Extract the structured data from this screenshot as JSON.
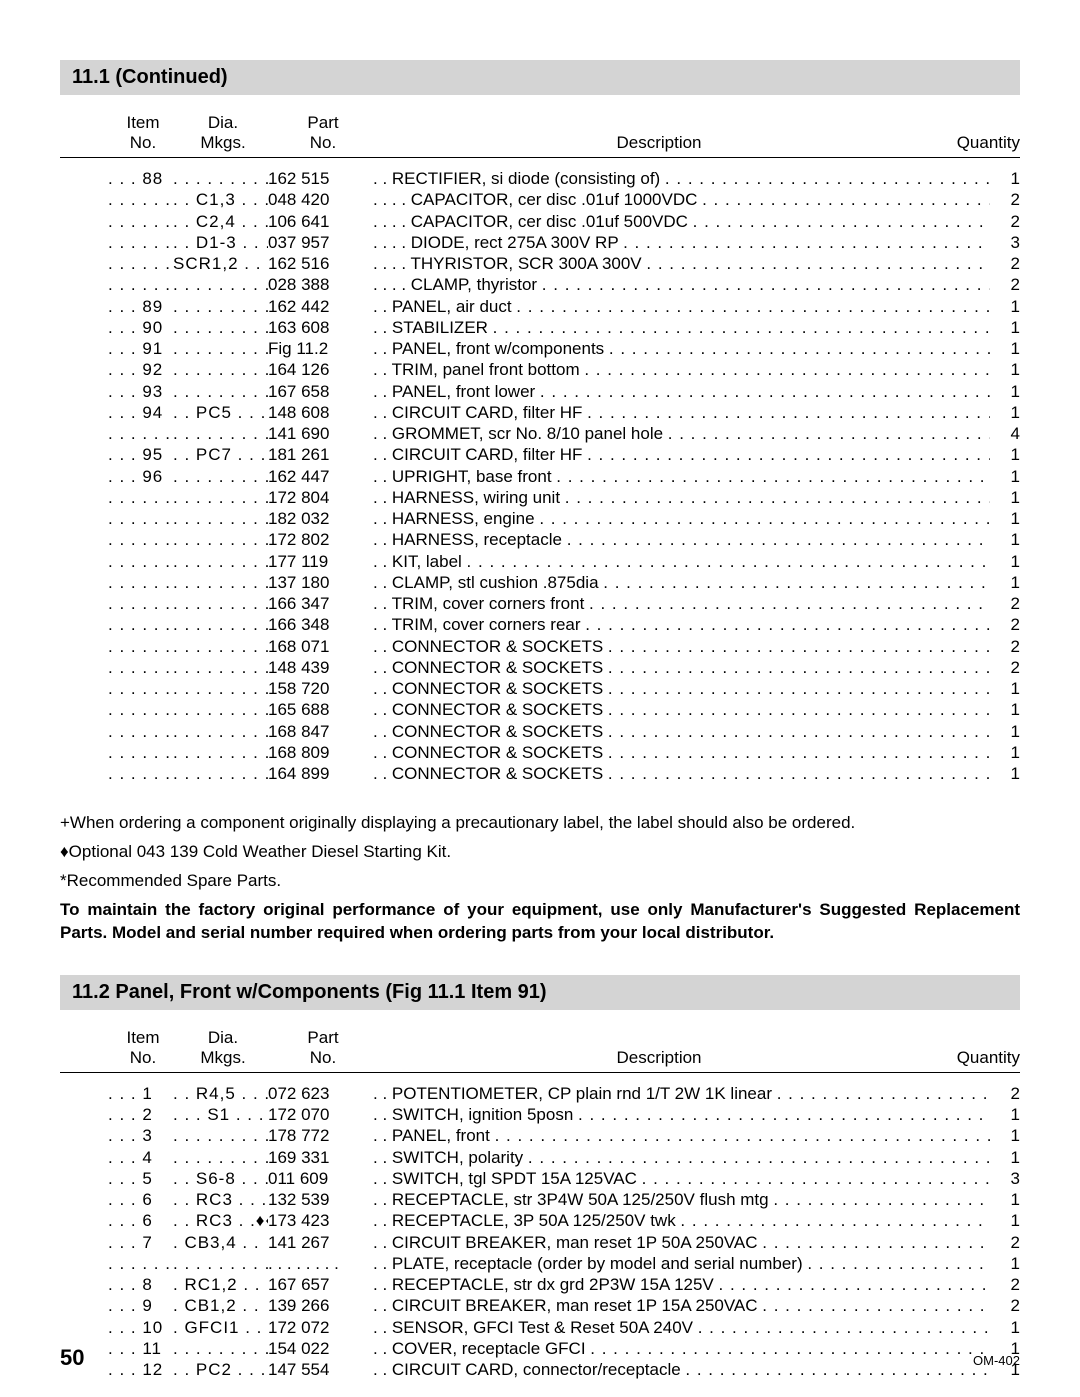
{
  "section1": {
    "title": "11.1   (Continued)",
    "headers": {
      "item1": "Item",
      "item2": "No.",
      "dia1": "Dia.",
      "dia2": "Mkgs.",
      "part1": "Part",
      "part2": "No.",
      "desc": "Description",
      "qty": "Quantity"
    },
    "rows": [
      {
        "item": ". . . 88",
        "dia": ". . . . . . . . . .",
        "part": "162 515",
        "desc": " . . RECTIFIER, si diode (consisting of) ",
        "qty": "1"
      },
      {
        "item": ". . . . . . .",
        "dia": ". . C1,3 . . .",
        "part": "048 420",
        "desc": " . . . . CAPACITOR, cer disc .01uf 1000VDC ",
        "qty": "2"
      },
      {
        "item": ". . . . . . .",
        "dia": ". . C2,4 . . .",
        "part": "106 641",
        "desc": " . . . . CAPACITOR, cer disc .01uf 500VDC ",
        "qty": "2"
      },
      {
        "item": ". . . . . . .",
        "dia": ". . D1-3 . . .",
        "part": "037 957",
        "desc": " . . . . DIODE, rect 275A 300V RP ",
        "qty": "3"
      },
      {
        "item": ". . . . . . .",
        "dia": "SCR1,2 . .",
        "part": "162 516",
        "desc": " . . . . THYRISTOR, SCR 300A 300V ",
        "qty": "2"
      },
      {
        "item": ". . . . . . .",
        "dia": ". . . . . . . . . .",
        "part": "028 388",
        "desc": " . . . . CLAMP, thyristor ",
        "qty": "2"
      },
      {
        "item": ". . . 89",
        "dia": ". . . . . . . . . .",
        "part": "162 442",
        "desc": " . . PANEL, air duct ",
        "qty": "1"
      },
      {
        "item": ". . . 90",
        "dia": ". . . . . . . . . .",
        "part": "163 608",
        "desc": " . . STABILIZER ",
        "qty": "1"
      },
      {
        "item": ". . . 91",
        "dia": ". . . . . . . . . .",
        "part": "Fig 11.2",
        "desc": " . . PANEL, front w/components ",
        "qty": "1"
      },
      {
        "item": ". . . 92",
        "dia": ". . . . . . . . . .",
        "part": "164 126",
        "desc": " . . TRIM, panel front bottom ",
        "qty": "1"
      },
      {
        "item": ". . . 93",
        "dia": ". . . . . . . . . .",
        "part": "167 658",
        "desc": " . . PANEL, front lower ",
        "qty": "1"
      },
      {
        "item": ". . . 94",
        "dia": ". . PC5 . . .",
        "part": "148 608",
        "desc": " . . CIRCUIT CARD, filter HF ",
        "qty": "1"
      },
      {
        "item": ". . . . . . .",
        "dia": ". . . . . . . . . .",
        "part": "141 690",
        "desc": " . . GROMMET, scr No. 8/10 panel hole ",
        "qty": "4"
      },
      {
        "item": ". . . 95",
        "dia": ". . PC7 . . .",
        "part": "181 261",
        "desc": " . . CIRCUIT CARD, filter HF ",
        "qty": "1"
      },
      {
        "item": ". . . 96",
        "dia": ". . . . . . . . . .",
        "part": "162 447",
        "desc": " . . UPRIGHT, base front ",
        "qty": "1"
      },
      {
        "item": ". . . . . . .",
        "dia": ". . . . . . . . . .",
        "part": "172 804",
        "desc": " . . HARNESS, wiring unit ",
        "qty": "1"
      },
      {
        "item": ". . . . . . .",
        "dia": ". . . . . . . . . .",
        "part": "182 032",
        "desc": " . . HARNESS, engine ",
        "qty": "1"
      },
      {
        "item": ". . . . . . .",
        "dia": ". . . . . . . . . .",
        "part": "172 802",
        "desc": " . . HARNESS, receptacle ",
        "qty": "1"
      },
      {
        "item": ". . . . . . .",
        "dia": ". . . . . . . . . .",
        "part": "177 119",
        "desc": " . . KIT, label ",
        "qty": "1"
      },
      {
        "item": ". . . . . . .",
        "dia": ". . . . . . . . . .",
        "part": "137 180",
        "desc": " . . CLAMP, stl cushion .875dia ",
        "qty": "1"
      },
      {
        "item": ". . . . . . .",
        "dia": ". . . . . . . . . .",
        "part": "166 347",
        "desc": " . . TRIM, cover corners front ",
        "qty": "2"
      },
      {
        "item": ". . . . . . .",
        "dia": ". . . . . . . . . .",
        "part": "166 348",
        "desc": " . . TRIM, cover corners rear ",
        "qty": "2"
      },
      {
        "item": ". . . . . . .",
        "dia": ". . . . . . . . . .",
        "part": "168 071",
        "desc": " . . CONNECTOR & SOCKETS ",
        "qty": "2"
      },
      {
        "item": ". . . . . . .",
        "dia": ". . . . . . . . . .",
        "part": "148 439",
        "desc": " . . CONNECTOR & SOCKETS ",
        "qty": "2"
      },
      {
        "item": ". . . . . . .",
        "dia": ". . . . . . . . . .",
        "part": "158 720",
        "desc": " . . CONNECTOR & SOCKETS ",
        "qty": "1"
      },
      {
        "item": ". . . . . . .",
        "dia": ". . . . . . . . . .",
        "part": "165 688",
        "desc": " . . CONNECTOR & SOCKETS ",
        "qty": "1"
      },
      {
        "item": ". . . . . . .",
        "dia": ". . . . . . . . . .",
        "part": "168 847",
        "desc": " . . CONNECTOR & SOCKETS ",
        "qty": "1"
      },
      {
        "item": ". . . . . . .",
        "dia": ". . . . . . . . . .",
        "part": "168 809",
        "desc": " . . CONNECTOR & SOCKETS ",
        "qty": "1"
      },
      {
        "item": ". . . . . . .",
        "dia": ". . . . . . . . . .",
        "part": "164 899",
        "desc": " . . CONNECTOR & SOCKETS ",
        "qty": "1"
      }
    ]
  },
  "footnotes": {
    "plus": "+When ordering a component originally displaying a precautionary label, the label should also be ordered.",
    "diamond": "♦Optional 043 139 Cold Weather Diesel Starting Kit.",
    "star": "*Recommended Spare Parts.",
    "bold": "To maintain the factory original performance of your equipment, use only Manufacturer's Suggested Replacement Parts. Model and serial number required when ordering parts from your local distributor."
  },
  "section2": {
    "title": "11.2   Panel, Front w/Components (Fig 11.1 Item 91)",
    "headers": {
      "item1": "Item",
      "item2": "No.",
      "dia1": "Dia.",
      "dia2": "Mkgs.",
      "part1": "Part",
      "part2": "No.",
      "desc": "Description",
      "qty": "Quantity"
    },
    "rows": [
      {
        "item": ". . .  1",
        "dia": ". . R4,5 . . .",
        "part": "072 623",
        "desc": " . . POTENTIOMETER, CP plain rnd 1/T 2W 1K linear ",
        "qty": "2"
      },
      {
        "item": ". . .  2",
        "dia": ". . . S1 . . . .",
        "part": "172 070",
        "desc": " . . SWITCH, ignition 5posn ",
        "qty": "1"
      },
      {
        "item": ". . .  3",
        "dia": ". . . . . . . . . .",
        "part": "178 772",
        "desc": " . . PANEL, front ",
        "qty": "1"
      },
      {
        "item": ". . .  4",
        "dia": ". . . . . . . . .♦",
        "part": "169 331",
        "desc": " . . SWITCH, polarity ",
        "qty": "1"
      },
      {
        "item": ". . .  5",
        "dia": ". . S6-8 . . .",
        "part": "011 609",
        "desc": " . . SWITCH, tgl SPDT 15A 125VAC ",
        "qty": "3"
      },
      {
        "item": ". . .  6",
        "dia": ". . RC3 . . .",
        "part": "132 539",
        "desc": " . . RECEPTACLE, str 3P4W 50A 125/250V flush mtg ",
        "qty": "1"
      },
      {
        "item": ". . .  6",
        "dia": ". . RC3 . .♦♦",
        "part": "173 423",
        "desc": " . . RECEPTACLE, 3P 50A 125/250V twk ",
        "qty": "1"
      },
      {
        "item": ". . .  7",
        "dia": ". CB3,4 . .",
        "part": "141 267",
        "desc": " . . CIRCUIT BREAKER, man reset 1P 50A 250VAC ",
        "qty": "2"
      },
      {
        "item": ". . . . . . .",
        "dia": ". . . . . . . . . .",
        "part": ". . . . . . . .",
        "desc": " . . PLATE, receptacle (order by model and serial number) ",
        "qty": "1"
      },
      {
        "item": ". . .  8",
        "dia": ". RC1,2 . .",
        "part": "167 657",
        "desc": " . . RECEPTACLE, str dx grd 2P3W 15A 125V ",
        "qty": "2"
      },
      {
        "item": ". . .  9",
        "dia": ". CB1,2 . .",
        "part": "139 266",
        "desc": " . . CIRCUIT BREAKER, man reset 1P 15A 250VAC ",
        "qty": "2"
      },
      {
        "item": ". . . 10",
        "dia": ". GFCI1 . .",
        "part": "172 072",
        "desc": " . . SENSOR, GFCI Test & Reset 50A 240V ",
        "qty": "1"
      },
      {
        "item": ". . . 11",
        "dia": ". . . . . . . . . .",
        "part": "154 022",
        "desc": " . . COVER, receptacle GFCI ",
        "qty": "1"
      },
      {
        "item": ". . . 12",
        "dia": ". . PC2 . . .",
        "part": "147 554",
        "desc": " . . CIRCUIT CARD, connector/receptacle ",
        "qty": "1"
      }
    ]
  },
  "footer": {
    "page": "50",
    "docid": "OM-402"
  }
}
